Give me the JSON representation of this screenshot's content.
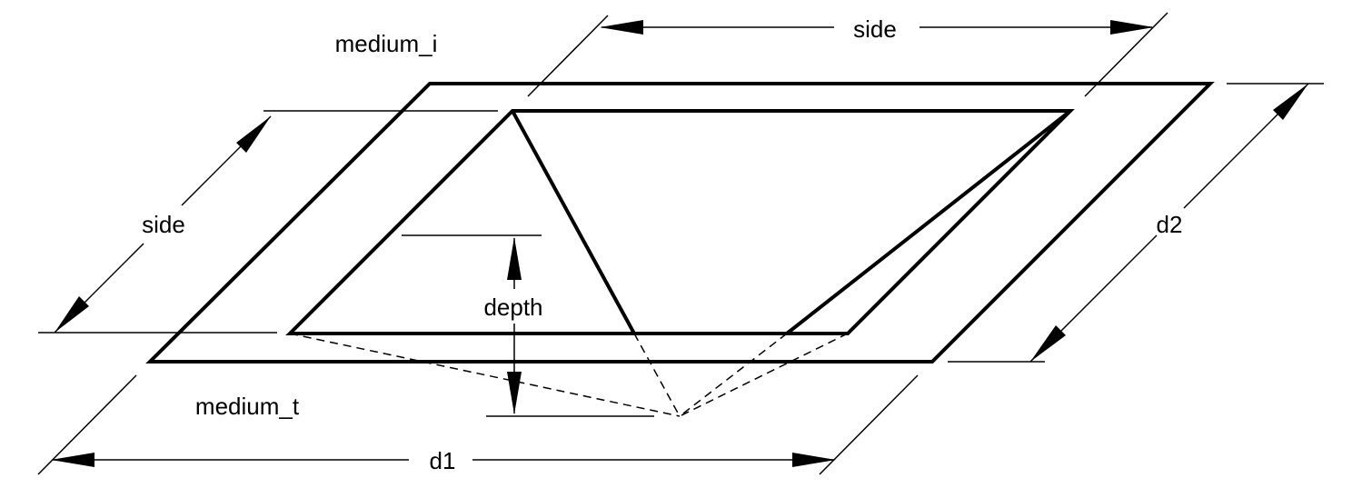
{
  "labels": {
    "medium_i": "medium_i",
    "medium_t": "medium_t",
    "side_top": "side",
    "side_left": "side",
    "d1": "d1",
    "d2": "d2",
    "depth": "depth"
  }
}
